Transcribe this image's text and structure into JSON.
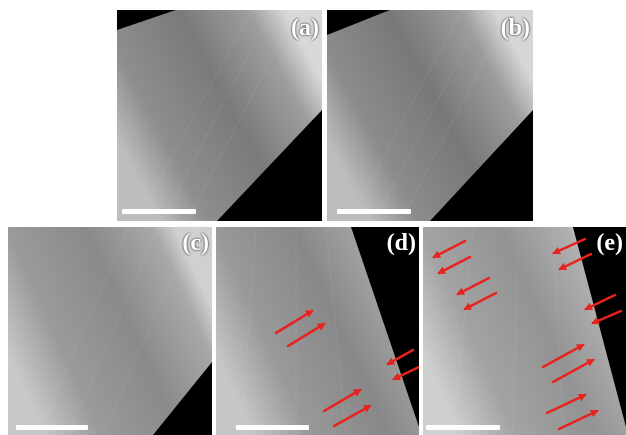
{
  "figure": {
    "panels": [
      {
        "id": "a",
        "label": "(a)"
      },
      {
        "id": "b",
        "label": "(b)"
      },
      {
        "id": "c",
        "label": "(c)"
      },
      {
        "id": "d",
        "label": "(d)"
      },
      {
        "id": "e",
        "label": "(e)"
      }
    ],
    "colors": {
      "background": "#000000",
      "fiber_highlight": "#d9d9d9",
      "fiber_mid": "#9a9a9a",
      "fiber_shadow": "#5a5a5a",
      "arrow": "#e8231f",
      "scale_bar": "#ffffff",
      "label": "#ffffff"
    },
    "arrow_counts": {
      "a": 0,
      "b": 0,
      "c": 0,
      "d": 6,
      "e": 12
    }
  }
}
